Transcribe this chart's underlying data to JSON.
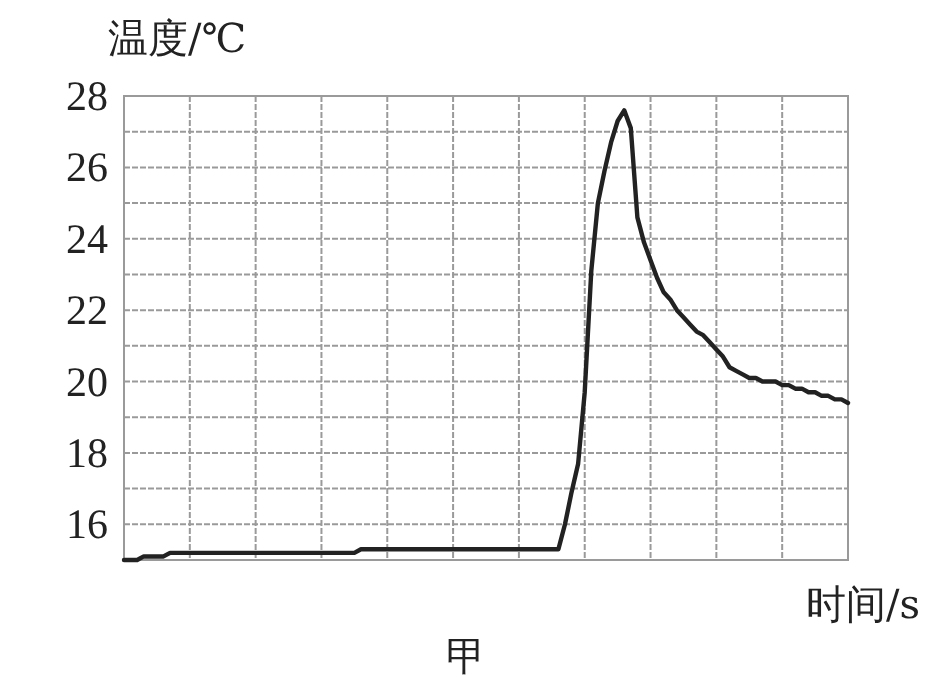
{
  "chart_data": {
    "type": "line",
    "ylabel": "温度/℃",
    "xlabel": "时间/s",
    "annotations": [
      "甲"
    ],
    "categories": [
      null,
      null,
      null,
      null,
      null,
      null,
      null,
      null,
      null,
      null,
      null,
      null,
      null,
      null,
      null,
      null,
      null,
      null,
      null,
      null,
      null,
      null,
      null,
      null,
      null,
      null,
      null,
      null,
      null,
      null,
      null,
      null,
      null,
      null,
      null,
      null,
      null,
      null,
      null,
      null,
      null,
      null,
      null,
      null,
      null,
      null,
      null,
      null,
      null,
      null,
      null,
      null,
      null,
      null,
      null,
      null,
      null,
      null,
      null,
      null,
      null,
      null,
      null,
      null,
      null,
      null,
      null,
      null,
      null,
      null,
      null,
      null,
      null,
      null,
      null,
      null,
      null,
      null,
      null,
      null,
      null,
      null,
      null,
      null,
      null,
      null,
      null,
      null,
      null,
      null,
      null,
      null,
      null,
      null,
      null,
      null,
      null,
      null,
      null,
      null,
      null,
      null,
      null,
      null,
      null,
      null,
      null,
      null,
      null,
      null,
      null
    ],
    "series": [
      {
        "color": "#222222",
        "values": [
          15.0,
          15.0,
          15.0,
          15.1,
          15.1,
          15.1,
          15.1,
          15.2,
          15.2,
          15.2,
          15.2,
          15.2,
          15.2,
          15.2,
          15.2,
          15.2,
          15.2,
          15.2,
          15.2,
          15.2,
          15.2,
          15.2,
          15.2,
          15.2,
          15.2,
          15.2,
          15.2,
          15.2,
          15.2,
          15.2,
          15.2,
          15.2,
          15.2,
          15.2,
          15.2,
          15.2,
          15.3,
          15.3,
          15.3,
          15.3,
          15.3,
          15.3,
          15.3,
          15.3,
          15.3,
          15.3,
          15.3,
          15.3,
          15.3,
          15.3,
          15.3,
          15.3,
          15.3,
          15.3,
          15.3,
          15.3,
          15.3,
          15.3,
          15.3,
          15.3,
          15.3,
          15.3,
          15.3,
          15.3,
          15.3,
          15.3,
          15.3,
          16.0,
          16.9,
          17.7,
          19.7,
          23.1,
          25.0,
          25.9,
          26.7,
          27.3,
          27.6,
          27.1,
          24.6,
          23.9,
          23.4,
          22.9,
          22.5,
          22.3,
          22.0,
          21.8,
          21.6,
          21.4,
          21.3,
          21.1,
          20.9,
          20.7,
          20.4,
          20.3,
          20.2,
          20.1,
          20.1,
          20.0,
          20.0,
          20.0,
          19.9,
          19.9,
          19.8,
          19.8,
          19.7,
          19.7,
          19.6,
          19.6,
          19.5,
          19.5,
          19.4
        ]
      }
    ],
    "ylim": [
      15,
      28
    ],
    "yticks": [
      {
        "value": 15,
        "label": null
      },
      16,
      {
        "value": 17,
        "label": null
      },
      18,
      {
        "value": 19,
        "label": null
      },
      20,
      {
        "value": 21,
        "label": null
      },
      22,
      {
        "value": 23,
        "label": null
      },
      24,
      {
        "value": 25,
        "label": null
      },
      26,
      {
        "value": 27,
        "label": null
      },
      28
    ],
    "grid": true,
    "marker": "none",
    "line_style": "solid"
  }
}
